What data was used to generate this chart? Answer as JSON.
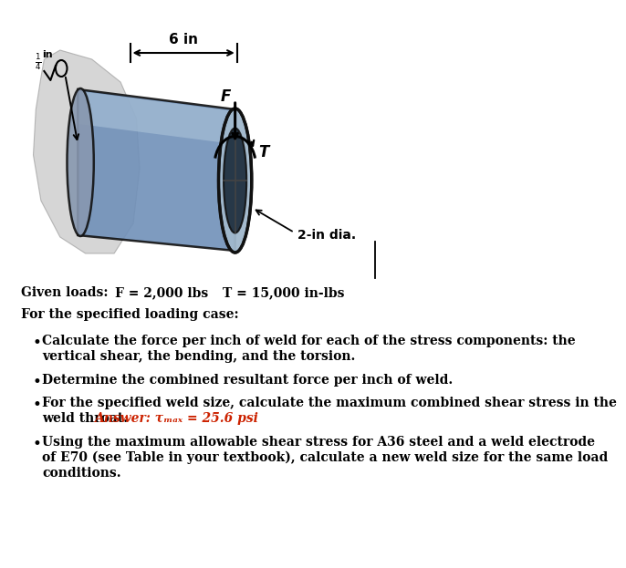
{
  "bg_color": "#ffffff",
  "given_loads_label": "Given loads:",
  "F_label": "F = 2,000 lbs",
  "T_label": "T = 15,000 in-lbs",
  "for_specified": "For the specified loading case:",
  "bullet1_line1": "Calculate the force per inch of weld for each of the stress components: the",
  "bullet1_line2": "vertical shear, the bending, and the torsion.",
  "bullet2": "Determine the combined resultant force per inch of weld.",
  "bullet3_line1": "For the specified weld size, calculate the maximum combined shear stress in the",
  "bullet3_line2_black": "weld throat.",
  "bullet3_line2_red": "Answer: τₘₐₓ = 25.6 psi",
  "bullet4_line1": "Using the maximum allowable shear stress for A36 steel and a weld electrode",
  "bullet4_line2": "of E70 (see Table in your textbook), calculate a new weld size for the same load",
  "bullet4_line3": "conditions.",
  "dim_6in": "6 in",
  "dim_2in_dia": "2-in dia.",
  "F_arrow_label": "F",
  "T_arrow_label": "T",
  "wall_color": "#c0c0c0",
  "cylinder_body_color": "#7090b8",
  "cylinder_highlight_color": "#b0c8dc",
  "cylinder_dark_color": "#1a2a3a",
  "cylinder_edge_color": "#111111"
}
